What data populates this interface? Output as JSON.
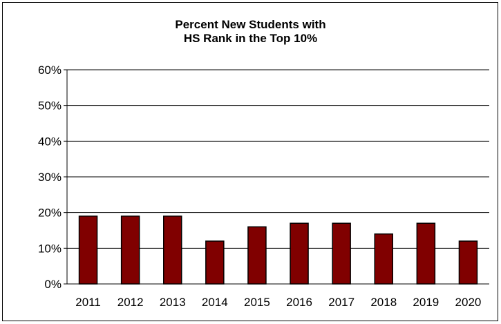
{
  "chart_data": {
    "type": "bar",
    "title": [
      "Percent New Students with",
      "HS Rank in the Top 10%"
    ],
    "categories": [
      "2011",
      "2012",
      "2013",
      "2014",
      "2015",
      "2016",
      "2017",
      "2018",
      "2019",
      "2020"
    ],
    "values": [
      19,
      19,
      19,
      12,
      16,
      17,
      17,
      14,
      17,
      12
    ],
    "ylim": [
      0,
      60
    ],
    "yticks": [
      "0%",
      "10%",
      "20%",
      "30%",
      "40%",
      "50%",
      "60%"
    ],
    "xlabel": "",
    "ylabel": "",
    "grid": true,
    "colors": {
      "bar_fill": "#800000",
      "bar_stroke": "#000000",
      "grid": "#000000"
    }
  }
}
